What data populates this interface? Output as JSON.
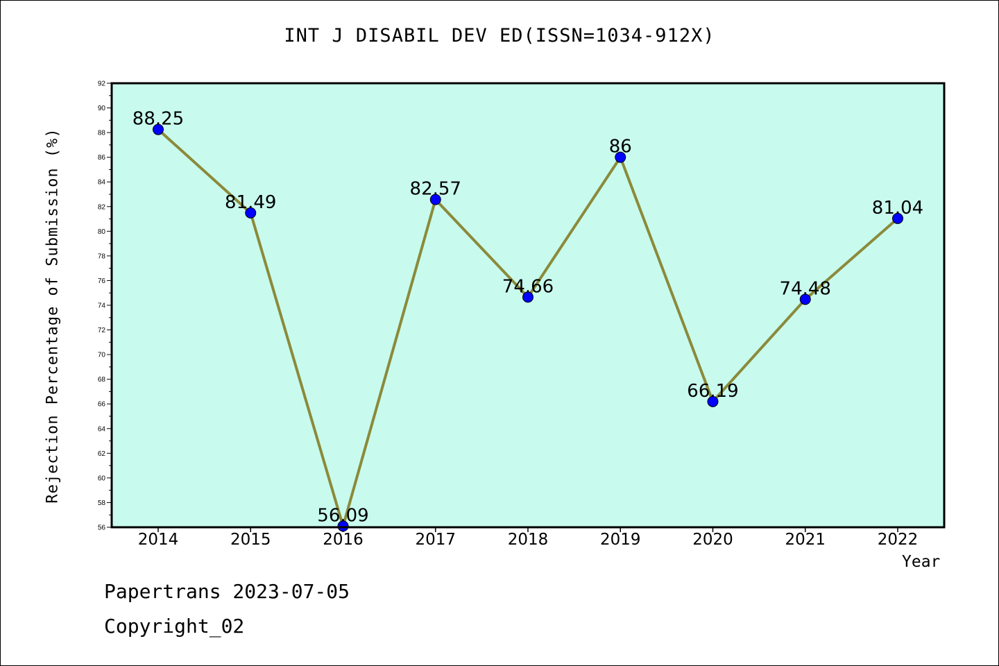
{
  "chart_data": {
    "type": "line",
    "title": "INT J DISABIL DEV ED(ISSN=1034-912X)",
    "xlabel": "Year",
    "ylabel": "Rejection Percentage of Submission (%)",
    "categories": [
      "2014",
      "2015",
      "2016",
      "2017",
      "2018",
      "2019",
      "2020",
      "2021",
      "2022"
    ],
    "series": [
      {
        "values": [
          88.25,
          81.49,
          56.09,
          82.57,
          74.66,
          86,
          66.19,
          74.48,
          81.04
        ],
        "data_labels": [
          "88.25",
          "81.49",
          "56.09",
          "82.57",
          "74.66",
          "86",
          "66.19",
          "74.48",
          "81.04"
        ]
      }
    ],
    "ylim": [
      56,
      92
    ],
    "yticks": [
      56,
      58,
      60,
      62,
      64,
      66,
      68,
      70,
      72,
      74,
      76,
      78,
      80,
      82,
      84,
      86,
      88,
      90,
      92
    ],
    "grid": false,
    "colors": {
      "plot_background": "#c8fbee",
      "line": "#8b8a3a",
      "marker": "#0000ff"
    }
  },
  "footer": {
    "line1": "Papertrans 2023-07-05",
    "line2": "Copyright_02"
  }
}
